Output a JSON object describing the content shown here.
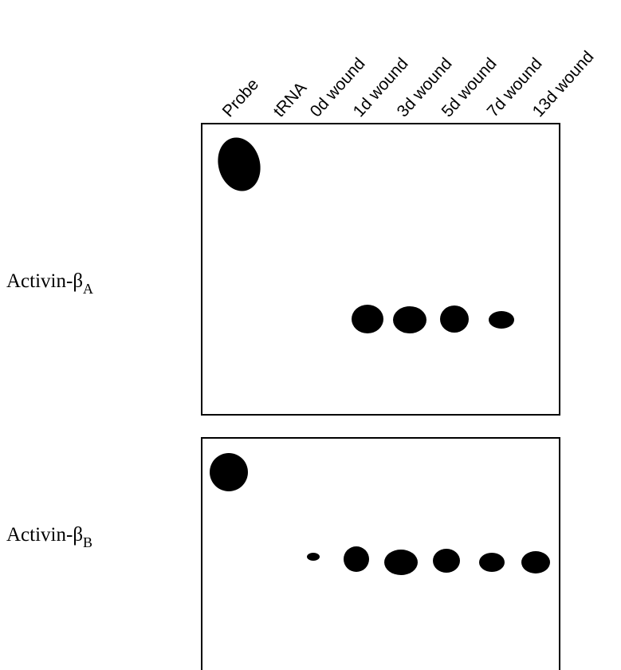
{
  "lanes": [
    "Probe",
    "tRNA",
    "0d wound",
    "1d wound",
    "3d wound",
    "5d wound",
    "7d wound",
    "13d wound"
  ],
  "panels": [
    {
      "label": "Activin-β",
      "subscript": "A"
    },
    {
      "label": "Activin-β",
      "subscript": "B"
    }
  ]
}
